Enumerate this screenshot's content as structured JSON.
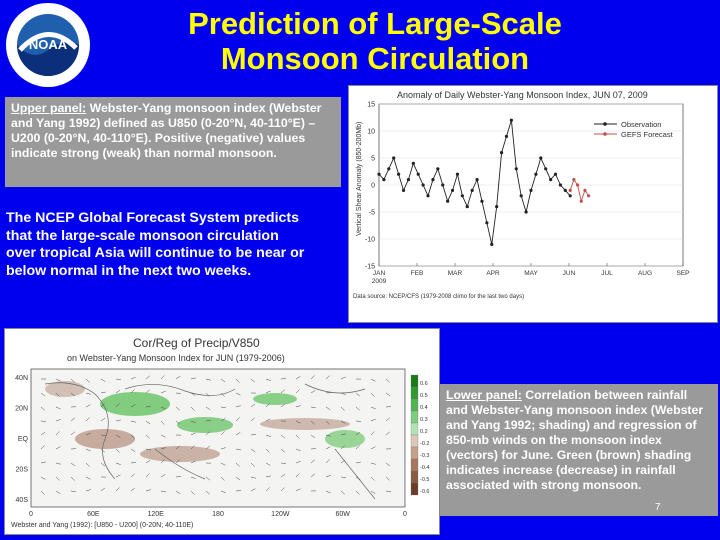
{
  "header": {
    "title_line1": "Prediction of Large-Scale",
    "title_line2": "Monsoon Circulation",
    "logo_text": "NOAA"
  },
  "upper_panel_note": {
    "label": "Upper panel:",
    "text": " Webster-Yang monsoon index (Webster and Yang 1992) defined as U850 (0-20°N, 40-110°E) – U200 (0-20°N, 40-110°E). Positive (negative) values indicate strong (weak) than normal monsoon."
  },
  "forecast_text": "The NCEP Global Forecast System predicts that the large-scale monsoon circulation over tropical Asia will continue to be near or below normal in the next two weeks.",
  "lower_panel_note": {
    "label": "Lower panel:",
    "text": " Correlation between rainfall and Webster-Yang monsoon index (Webster and Yang 1992; shading) and regression of 850-mb winds on the monsoon index (vectors) for June. Green (brown) shading indicates increase (decrease) in rainfall associated with strong monsoon."
  },
  "page_number": "7",
  "top_chart": {
    "title": "Anomaly of Daily Webster-Yang Monsoon Index, JUN 07, 2009",
    "ylabel": "Vertical Shear Anomaly (850-200Mb)",
    "legend_obs": "Observation",
    "legend_fcst": "GEFS Forecast",
    "yticks": [
      "15",
      "10",
      "5",
      "0",
      "-5",
      "-10",
      "-15"
    ],
    "xticks": [
      "JAN\n2009",
      "FEB",
      "MAR",
      "APR",
      "MAY",
      "JUN",
      "JUL",
      "AUG",
      "SEP"
    ],
    "footnote": "Data source: NCEP/CFS (1979-2008 climo for the last two days)"
  },
  "chart_data": {
    "type": "line",
    "title": "Anomaly of Daily Webster-Yang Monsoon Index, JUN 07, 2009",
    "ylabel": "Vertical Shear Anomaly (850-200Mb)",
    "ylim": [
      -15,
      15
    ],
    "xticks": [
      "JAN 2009",
      "FEB",
      "MAR",
      "APR",
      "MAY",
      "JUN",
      "JUL",
      "AUG",
      "SEP"
    ],
    "series": [
      {
        "name": "Observation",
        "x": [
          0,
          4,
          8,
          12,
          16,
          20,
          24,
          28,
          32,
          36,
          40,
          44,
          48,
          52,
          56,
          60,
          64,
          68,
          72,
          76,
          80,
          84,
          88,
          92,
          96,
          100,
          104,
          108,
          112,
          116,
          120,
          124,
          128,
          132,
          136,
          140,
          144,
          148,
          152,
          156
        ],
        "y": [
          2,
          1,
          3,
          5,
          2,
          -1,
          1,
          4,
          2,
          0,
          -2,
          1,
          3,
          0,
          -3,
          -1,
          2,
          -2,
          -4,
          -1,
          1,
          -3,
          -7,
          -11,
          -4,
          6,
          9,
          12,
          3,
          -2,
          -5,
          -1,
          2,
          5,
          3,
          1,
          2,
          0,
          -1,
          -2
        ]
      },
      {
        "name": "GEFS Forecast",
        "x": [
          156,
          159,
          162,
          165,
          168,
          171
        ],
        "y": [
          -1,
          1,
          0,
          -3,
          -1,
          -2
        ]
      }
    ]
  },
  "bottom_chart": {
    "title": "Cor/Reg of Precip/V850",
    "subtitle": "on Webster-Yang Monsoon Index for JUN (1979-2006)",
    "lat_labels": [
      "40N",
      "20N",
      "EQ",
      "20S",
      "40S"
    ],
    "lon_labels": [
      "0",
      "60E",
      "120E",
      "180",
      "120W",
      "60W",
      "0"
    ],
    "footnote": "Webster and Yang (1992): [U850 - U200] (0-20N; 40-110E)",
    "colorbar": [
      "0.6",
      "0.5",
      "0.4",
      "0.3",
      "0.2",
      "-0.2",
      "-0.3",
      "-0.4",
      "-0.5",
      "-0.6"
    ]
  }
}
